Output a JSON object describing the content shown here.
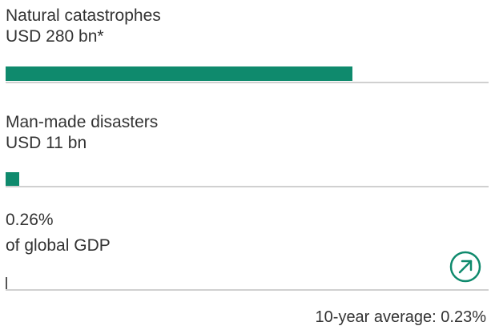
{
  "chart_data": {
    "type": "bar",
    "orientation": "horizontal",
    "categories": [
      "Natural catastrophes",
      "Man-made disasters"
    ],
    "values": [
      280,
      11
    ],
    "value_labels": [
      "USD 280 bn*",
      "USD 11 bn"
    ],
    "unit": "USD bn",
    "xlim": [
      0,
      390
    ]
  },
  "gdp": {
    "value_label": "0.26%",
    "caption": "of global GDP",
    "value_percent": 0.26,
    "trend_icon": "arrow-up-right-icon"
  },
  "footer": {
    "average_label": "10-year average: 0.23%"
  },
  "colors": {
    "bar": "#0f8a6d",
    "track": "#d0d0d0",
    "text": "#333333"
  }
}
